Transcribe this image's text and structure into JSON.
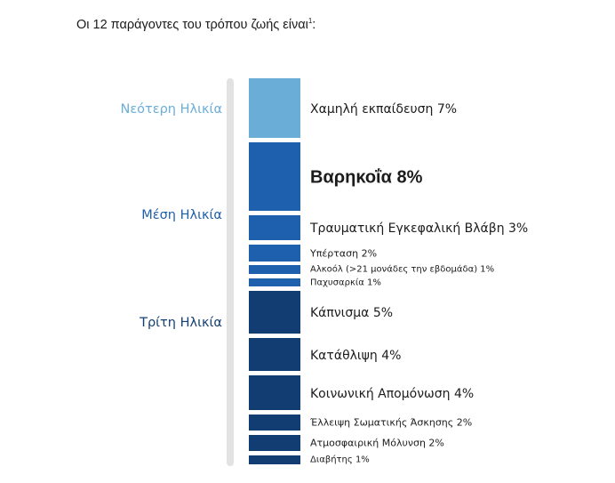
{
  "title": {
    "text": "Οι 12 παράγοντες του τρόπου ζωής είναι",
    "footnote": "1",
    "suffix": ":"
  },
  "colors": {
    "light": "#6aaed8",
    "mid": "#1e5fae",
    "dark": "#113d73",
    "rail": "#e2e2e2"
  },
  "stages": [
    {
      "label": "Νεότερη Ηλικία",
      "color": "#6aaed8"
    },
    {
      "label": "Μέση Ηλικία",
      "color": "#1f5ea9"
    },
    {
      "label": "Τρίτη Ηλικία",
      "color": "#143f73"
    }
  ],
  "chart_data": {
    "type": "bar",
    "orientation": "stacked-vertical",
    "unit": "%",
    "categories": [
      "Χαμηλή εκπαίδευση",
      "Βαρηκοΐα",
      "Τραυματική Εγκεφαλική Βλάβη",
      "Υπέρταση",
      "Αλκοόλ (>21 μονάδες την εβδομάδα)",
      "Παχυσαρκία",
      "Κάπνισμα",
      "Κατάθλιψη",
      "Κοινωνική Απομόνωση",
      "Έλλειψη Σωματικής Άσκησης",
      "Ατμοσφαιρική Μόλυνση",
      "Διαβήτης"
    ],
    "values": [
      7,
      8,
      3,
      2,
      1,
      1,
      5,
      4,
      4,
      2,
      2,
      1
    ],
    "labels": [
      "Χαμηλή εκπαίδευση 7%",
      "Βαρηκοΐα 8%",
      "Τραυματική Εγκεφαλική Βλάβη 3%",
      "Υπέρταση 2%",
      "Αλκοόλ (>21 μονάδες την εβδομάδα) 1%",
      "Παχυσαρκία 1%",
      "Κάπνισμα 5%",
      "Κατάθλιψη 4%",
      "Κοινωνική Απομόνωση 4%",
      "Έλλειψη Σωματικής Άσκησης 2%",
      "Ατμοσφαιρική Μόλυνση 2%",
      "Διαβήτης 1%"
    ],
    "stage": [
      "Νεότερη Ηλικία",
      "Μέση Ηλικία",
      "Μέση Ηλικία",
      "Μέση Ηλικία",
      "Μέση Ηλικία",
      "Μέση Ηλικία",
      "Τρίτη Ηλικία",
      "Τρίτη Ηλικία",
      "Τρίτη Ηλικία",
      "Τρίτη Ηλικία",
      "Τρίτη Ηλικία",
      "Τρίτη Ηλικία"
    ],
    "emphasized": "Βαρηκοΐα"
  }
}
